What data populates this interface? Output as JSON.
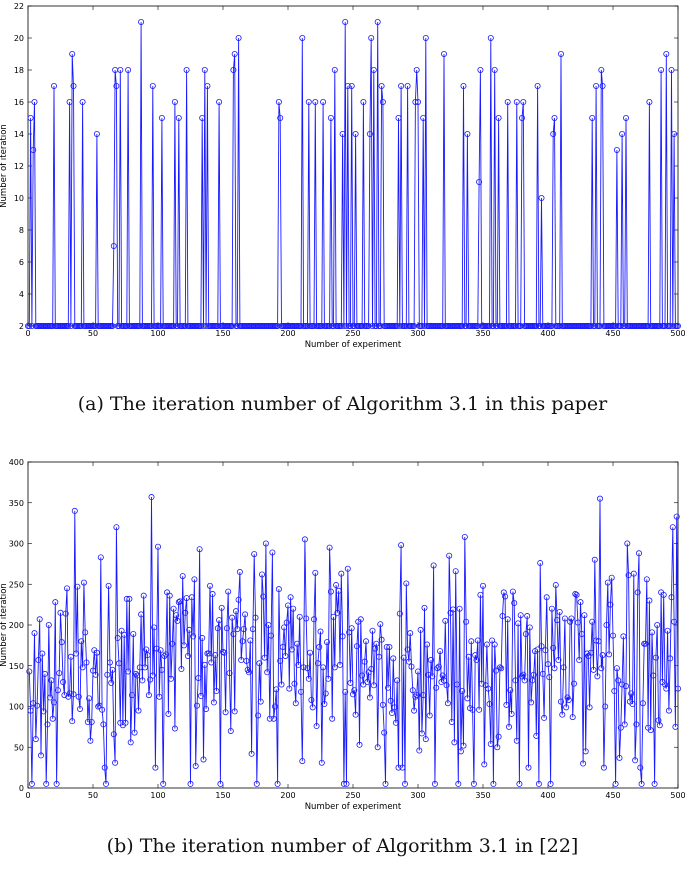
{
  "captions": {
    "a": "(a)  The iteration number of Algorithm 3.1 in this paper",
    "b": "(b)  The iteration number of Algorithm 3.1 in [22]"
  },
  "colors": {
    "series": "#1a1aff",
    "axes": "#000000",
    "background": "#ffffff"
  },
  "chart_data": [
    {
      "id": "a",
      "type": "line",
      "marker": "circle",
      "xlabel": "Number of experiment",
      "ylabel": "Number of iteration",
      "xlim": [
        0,
        500
      ],
      "ylim": [
        2,
        22
      ],
      "xticks": [
        0,
        50,
        100,
        150,
        200,
        250,
        300,
        350,
        400,
        450,
        500
      ],
      "yticks": [
        2,
        4,
        6,
        8,
        10,
        12,
        14,
        16,
        18,
        20,
        22
      ],
      "grid": false,
      "legend": "none",
      "baseline": 2,
      "points": [
        [
          2,
          15
        ],
        [
          4,
          13
        ],
        [
          5,
          16
        ],
        [
          20,
          17
        ],
        [
          32,
          16
        ],
        [
          34,
          19
        ],
        [
          35,
          17
        ],
        [
          42,
          16
        ],
        [
          53,
          14
        ],
        [
          66,
          7
        ],
        [
          67,
          18
        ],
        [
          68,
          17
        ],
        [
          71,
          18
        ],
        [
          77,
          18
        ],
        [
          87,
          21
        ],
        [
          96,
          17
        ],
        [
          103,
          15
        ],
        [
          113,
          16
        ],
        [
          116,
          15
        ],
        [
          122,
          18
        ],
        [
          134,
          15
        ],
        [
          136,
          18
        ],
        [
          138,
          17
        ],
        [
          147,
          16
        ],
        [
          158,
          18
        ],
        [
          159,
          19
        ],
        [
          162,
          20
        ],
        [
          193,
          16
        ],
        [
          194,
          15
        ],
        [
          211,
          20
        ],
        [
          216,
          16
        ],
        [
          221,
          16
        ],
        [
          227,
          16
        ],
        [
          233,
          15
        ],
        [
          236,
          18
        ],
        [
          242,
          14
        ],
        [
          244,
          21
        ],
        [
          246,
          17
        ],
        [
          249,
          17
        ],
        [
          252,
          14
        ],
        [
          258,
          16
        ],
        [
          263,
          14
        ],
        [
          264,
          20
        ],
        [
          266,
          18
        ],
        [
          269,
          21
        ],
        [
          272,
          17
        ],
        [
          273,
          16
        ],
        [
          285,
          15
        ],
        [
          287,
          17
        ],
        [
          292,
          17
        ],
        [
          298,
          16
        ],
        [
          299,
          18
        ],
        [
          300,
          16
        ],
        [
          304,
          15
        ],
        [
          306,
          20
        ],
        [
          320,
          19
        ],
        [
          335,
          17
        ],
        [
          338,
          14
        ],
        [
          347,
          11
        ],
        [
          348,
          18
        ],
        [
          356,
          20
        ],
        [
          359,
          18
        ],
        [
          362,
          15
        ],
        [
          369,
          16
        ],
        [
          376,
          16
        ],
        [
          380,
          15
        ],
        [
          381,
          16
        ],
        [
          392,
          17
        ],
        [
          395,
          10
        ],
        [
          404,
          14
        ],
        [
          405,
          15
        ],
        [
          410,
          19
        ],
        [
          434,
          15
        ],
        [
          437,
          17
        ],
        [
          441,
          18
        ],
        [
          442,
          17
        ],
        [
          453,
          13
        ],
        [
          457,
          14
        ],
        [
          460,
          15
        ],
        [
          478,
          16
        ],
        [
          487,
          18
        ],
        [
          491,
          19
        ],
        [
          495,
          18
        ],
        [
          497,
          14
        ]
      ]
    },
    {
      "id": "b",
      "type": "line",
      "marker": "circle",
      "xlabel": "Number of experiment",
      "ylabel": "Number of iteration",
      "xlim": [
        0,
        500
      ],
      "ylim": [
        0,
        400
      ],
      "xticks": [
        0,
        50,
        100,
        150,
        200,
        250,
        300,
        350,
        400,
        450,
        500
      ],
      "yticks": [
        0,
        50,
        100,
        150,
        200,
        250,
        300,
        350,
        400
      ],
      "grid": false,
      "legend": "none",
      "spikes": [
        [
          3,
          5
        ],
        [
          6,
          60
        ],
        [
          10,
          40
        ],
        [
          14,
          5
        ],
        [
          19,
          85
        ],
        [
          22,
          5
        ],
        [
          36,
          340
        ],
        [
          60,
          5
        ],
        [
          68,
          320
        ],
        [
          95,
          357
        ],
        [
          104,
          5
        ],
        [
          125,
          5
        ],
        [
          148,
          5
        ],
        [
          176,
          5
        ],
        [
          192,
          5
        ],
        [
          213,
          305
        ],
        [
          243,
          5
        ],
        [
          245,
          5
        ],
        [
          275,
          5
        ],
        [
          290,
          5
        ],
        [
          313,
          5
        ],
        [
          331,
          5
        ],
        [
          336,
          308
        ],
        [
          343,
          5
        ],
        [
          358,
          5
        ],
        [
          378,
          5
        ],
        [
          393,
          5
        ],
        [
          402,
          5
        ],
        [
          427,
          30
        ],
        [
          440,
          355
        ],
        [
          452,
          5
        ],
        [
          472,
          5
        ],
        [
          482,
          5
        ],
        [
          496,
          320
        ],
        [
          499,
          333
        ]
      ],
      "seed": 17,
      "n": 500,
      "mean": 155,
      "spread": 62
    }
  ]
}
